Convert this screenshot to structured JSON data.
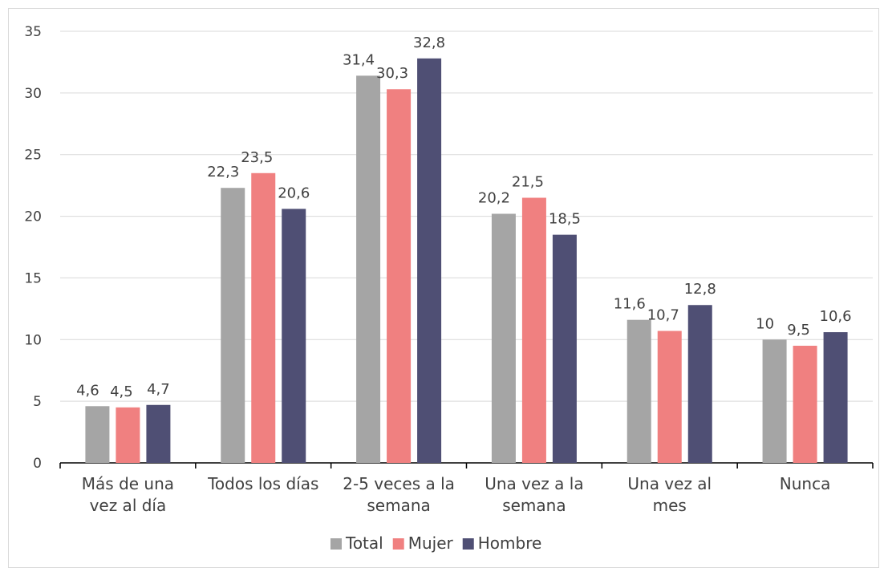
{
  "chart_data": {
    "type": "bar",
    "categories": [
      [
        "Más de una",
        "vez al día"
      ],
      [
        "Todos los días"
      ],
      [
        "2-5 veces a la",
        "semana"
      ],
      [
        "Una vez a la",
        "semana"
      ],
      [
        "Una vez al",
        "mes"
      ],
      [
        "Nunca"
      ]
    ],
    "series": [
      {
        "name": "Total",
        "color": "#a5a5a5",
        "values": [
          4.6,
          22.3,
          31.4,
          20.2,
          11.6,
          10
        ],
        "labels": [
          "4,6",
          "22,3",
          "31,4",
          "20,2",
          "11,6",
          "10"
        ]
      },
      {
        "name": "Mujer",
        "color": "#f08080",
        "values": [
          4.5,
          23.5,
          30.3,
          21.5,
          10.7,
          9.5
        ],
        "labels": [
          "4,5",
          "23,5",
          "30,3",
          "21,5",
          "10,7",
          "9,5"
        ]
      },
      {
        "name": "Hombre",
        "color": "#4f4f74",
        "values": [
          4.7,
          20.6,
          32.8,
          18.5,
          12.8,
          10.6
        ],
        "labels": [
          "4,7",
          "20,6",
          "32,8",
          "18,5",
          "12,8",
          "10,6"
        ]
      }
    ],
    "ylim": [
      0,
      35
    ],
    "yticks": [
      0,
      5,
      10,
      15,
      20,
      25,
      30,
      35
    ],
    "grid": true,
    "legend": "bottom"
  }
}
